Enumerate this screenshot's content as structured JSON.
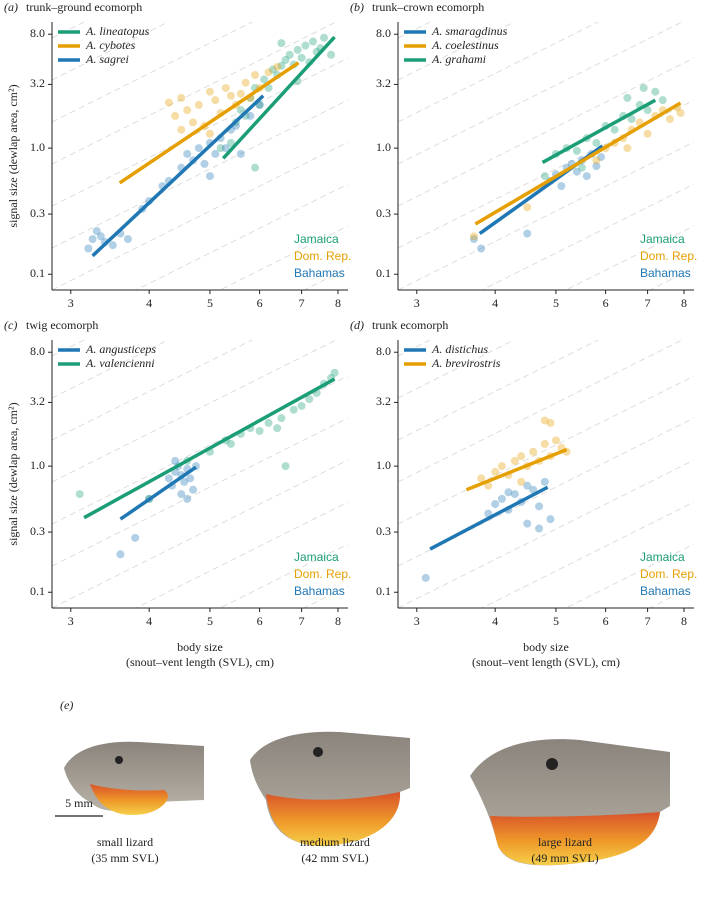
{
  "chart_data": [
    {
      "type": "scatter",
      "panel_label": "(a)",
      "title": "trunk–ground ecomorph",
      "y_label": "signal size (dewlap area, cm²)",
      "log_x": true,
      "log_y": true,
      "xlim": [
        2.8,
        8.3
      ],
      "ylim": [
        0.075,
        10
      ],
      "xticks": [
        3,
        4,
        5,
        6,
        7,
        8
      ],
      "yticks": [
        0.1,
        0.3,
        {
          "value": 1,
          "label": "1.0"
        },
        3.2,
        {
          "value": 8,
          "label": "8.0"
        }
      ],
      "regions": [
        {
          "name": "Jamaica",
          "color": "#1b9e77"
        },
        {
          "name": "Dom. Rep.",
          "color": "#e69f00"
        },
        {
          "name": "Bahamas",
          "color": "#1f77b4"
        }
      ],
      "series": [
        {
          "name": "A. lineatopus",
          "color": "#1b9e77",
          "x": [
            5.2,
            5.4,
            5.5,
            5.6,
            5.7,
            5.8,
            5.9,
            6.0,
            6.1,
            6.2,
            6.3,
            6.4,
            6.5,
            6.6,
            6.7,
            6.8,
            6.9,
            7.0,
            7.1,
            7.2,
            7.3,
            7.4,
            7.5,
            7.6,
            7.8,
            5.9,
            6.5,
            6.9
          ],
          "values": [
            1.0,
            1.1,
            1.6,
            2.0,
            1.8,
            2.5,
            3.0,
            2.2,
            3.5,
            3.0,
            4.2,
            3.8,
            4.5,
            5.0,
            5.5,
            4.6,
            6.0,
            5.2,
            6.5,
            4.8,
            7.0,
            5.8,
            6.2,
            7.5,
            5.5,
            0.7,
            6.8,
            3.4
          ],
          "fit_x": [
            5.25,
            7.9
          ],
          "fit_y": [
            0.83,
            7.6
          ]
        },
        {
          "name": "A. cybotes",
          "color": "#e69f00",
          "x": [
            4.3,
            4.4,
            4.5,
            4.6,
            4.7,
            4.8,
            4.9,
            5.0,
            5.1,
            5.2,
            5.3,
            5.4,
            5.5,
            5.6,
            5.7,
            5.8,
            5.9,
            6.0,
            6.2,
            6.4,
            4.5,
            5.0
          ],
          "values": [
            2.3,
            1.8,
            2.5,
            2.0,
            1.6,
            2.2,
            1.5,
            2.8,
            2.4,
            1.9,
            3.0,
            2.6,
            2.2,
            2.7,
            3.3,
            2.5,
            3.8,
            3.0,
            4.0,
            4.4,
            1.4,
            1.3
          ],
          "fit_x": [
            3.59,
            6.92
          ],
          "fit_y": [
            0.53,
            4.75
          ]
        },
        {
          "name": "A. sagrei",
          "color": "#1f77b4",
          "x": [
            3.2,
            3.25,
            3.3,
            3.35,
            3.4,
            3.5,
            3.6,
            3.7,
            3.9,
            4.0,
            4.2,
            4.3,
            4.5,
            4.6,
            4.7,
            4.8,
            4.9,
            5.0,
            5.0,
            5.1,
            5.2,
            5.3,
            5.4,
            5.5,
            5.6,
            5.8,
            6.0
          ],
          "values": [
            0.16,
            0.19,
            0.22,
            0.2,
            0.18,
            0.17,
            0.21,
            0.19,
            0.33,
            0.38,
            0.5,
            0.55,
            0.7,
            0.9,
            0.8,
            1.0,
            0.75,
            1.1,
            0.6,
            0.9,
            1.2,
            1.0,
            1.4,
            1.5,
            0.9,
            1.8,
            2.2
          ],
          "fit_x": [
            3.25,
            6.08
          ],
          "fit_y": [
            0.14,
            2.6
          ]
        }
      ]
    },
    {
      "type": "scatter",
      "panel_label": "(b)",
      "title": "trunk–crown ecomorph",
      "log_x": true,
      "log_y": true,
      "xlim": [
        2.8,
        8.3
      ],
      "ylim": [
        0.075,
        10
      ],
      "xticks": [
        3,
        4,
        5,
        6,
        7,
        8
      ],
      "yticks": [
        0.1,
        0.3,
        {
          "value": 1,
          "label": "1.0"
        },
        3.2,
        {
          "value": 8,
          "label": "8.0"
        }
      ],
      "regions": [
        {
          "name": "Jamaica",
          "color": "#1b9e77"
        },
        {
          "name": "Dom. Rep.",
          "color": "#e69f00"
        },
        {
          "name": "Bahamas",
          "color": "#1f77b4"
        }
      ],
      "series": [
        {
          "name": "A. smaragdinus",
          "color": "#1f77b4",
          "x": [
            3.7,
            3.8,
            4.5,
            4.9,
            5.0,
            5.1,
            5.2,
            5.3,
            5.4,
            5.5,
            5.6,
            5.7,
            5.8,
            5.9
          ],
          "values": [
            0.19,
            0.16,
            0.21,
            0.55,
            0.62,
            0.5,
            0.7,
            0.75,
            0.65,
            0.8,
            0.6,
            0.9,
            0.72,
            0.85
          ],
          "fit_x": [
            3.78,
            5.93
          ],
          "fit_y": [
            0.21,
            1.04
          ]
        },
        {
          "name": "A. coelestinus",
          "color": "#e69f00",
          "x": [
            3.7,
            4.5,
            5.8,
            6.0,
            6.2,
            6.4,
            6.5,
            6.6,
            6.8,
            7.0,
            7.2,
            7.4,
            7.6,
            7.8,
            7.9
          ],
          "values": [
            0.2,
            0.34,
            0.8,
            1.0,
            1.1,
            1.2,
            1.0,
            1.4,
            1.6,
            1.3,
            1.8,
            2.0,
            1.7,
            2.1,
            1.9
          ],
          "fit_x": [
            3.72,
            7.9
          ],
          "fit_y": [
            0.25,
            2.28
          ]
        },
        {
          "name": "A. grahami",
          "color": "#1b9e77",
          "x": [
            4.8,
            5.0,
            5.2,
            5.4,
            5.6,
            5.8,
            6.0,
            6.2,
            6.4,
            6.6,
            6.8,
            7.0,
            7.2,
            7.4,
            6.5,
            5.5,
            6.9
          ],
          "values": [
            0.6,
            0.9,
            1.0,
            0.95,
            1.2,
            1.1,
            1.5,
            1.4,
            1.8,
            1.7,
            2.2,
            2.0,
            2.8,
            2.4,
            2.5,
            0.7,
            3.0
          ],
          "fit_x": [
            4.76,
            7.2
          ],
          "fit_y": [
            0.77,
            2.4
          ]
        }
      ]
    },
    {
      "type": "scatter",
      "panel_label": "(c)",
      "title": "twig ecomorph",
      "y_label": "signal size (dewlap area, cm²)",
      "x_label": [
        "body size",
        "(snout–vent length (SVL), cm)"
      ],
      "log_x": true,
      "log_y": true,
      "xlim": [
        2.8,
        8.3
      ],
      "ylim": [
        0.075,
        10
      ],
      "xticks": [
        3,
        4,
        5,
        6,
        7,
        8
      ],
      "yticks": [
        0.1,
        0.3,
        {
          "value": 1,
          "label": "1.0"
        },
        3.2,
        {
          "value": 8,
          "label": "8.0"
        }
      ],
      "regions": [
        {
          "name": "Jamaica",
          "color": "#1b9e77"
        },
        {
          "name": "Dom. Rep.",
          "color": "#e69f00"
        },
        {
          "name": "Bahamas",
          "color": "#1f77b4"
        }
      ],
      "series": [
        {
          "name": "A. angusticeps",
          "color": "#1f77b4",
          "x": [
            3.6,
            3.8,
            4.0,
            4.3,
            4.35,
            4.4,
            4.45,
            4.5,
            4.5,
            4.55,
            4.6,
            4.65,
            4.7,
            4.75,
            4.4,
            4.6
          ],
          "values": [
            0.2,
            0.27,
            0.55,
            0.8,
            0.7,
            0.9,
            1.0,
            0.85,
            0.6,
            0.75,
            0.95,
            0.8,
            0.65,
            1.0,
            1.1,
            0.55
          ],
          "fit_x": [
            3.6,
            4.75
          ],
          "fit_y": [
            0.38,
            0.98
          ]
        },
        {
          "name": "A. valencienni",
          "color": "#1b9e77",
          "x": [
            3.1,
            4.0,
            4.6,
            5.0,
            5.3,
            5.6,
            5.8,
            6.0,
            6.2,
            6.5,
            6.6,
            6.8,
            7.0,
            7.2,
            7.4,
            7.6,
            7.8,
            7.9,
            6.4,
            5.4
          ],
          "values": [
            0.6,
            0.55,
            1.1,
            1.3,
            1.6,
            1.8,
            2.0,
            1.9,
            2.2,
            2.4,
            1.0,
            2.8,
            3.0,
            3.4,
            3.8,
            4.5,
            5.0,
            5.5,
            2.0,
            1.5
          ],
          "fit_x": [
            3.15,
            7.9
          ],
          "fit_y": [
            0.39,
            4.9
          ]
        }
      ]
    },
    {
      "type": "scatter",
      "panel_label": "(d)",
      "title": "trunk ecomorph",
      "x_label": [
        "body size",
        "(snout–vent length (SVL), cm)"
      ],
      "log_x": true,
      "log_y": true,
      "xlim": [
        2.8,
        8.3
      ],
      "ylim": [
        0.075,
        10
      ],
      "xticks": [
        3,
        4,
        5,
        6,
        7,
        8
      ],
      "yticks": [
        0.1,
        0.3,
        {
          "value": 1,
          "label": "1.0"
        },
        3.2,
        {
          "value": 8,
          "label": "8.0"
        }
      ],
      "regions": [
        {
          "name": "Jamaica",
          "color": "#1b9e77"
        },
        {
          "name": "Dom. Rep.",
          "color": "#e69f00"
        },
        {
          "name": "Bahamas",
          "color": "#1f77b4"
        }
      ],
      "series": [
        {
          "name": "A. distichus",
          "color": "#1f77b4",
          "x": [
            3.1,
            3.9,
            4.0,
            4.1,
            4.2,
            4.3,
            4.4,
            4.5,
            4.6,
            4.7,
            4.8,
            4.9,
            4.5,
            4.7,
            4.2
          ],
          "values": [
            0.13,
            0.42,
            0.5,
            0.55,
            0.45,
            0.6,
            0.52,
            0.7,
            0.65,
            0.48,
            0.75,
            0.38,
            0.35,
            0.32,
            0.62
          ],
          "fit_x": [
            3.15,
            4.85
          ],
          "fit_y": [
            0.22,
            0.68
          ]
        },
        {
          "name": "A. brevirostris",
          "color": "#e69f00",
          "x": [
            3.8,
            3.9,
            4.0,
            4.1,
            4.2,
            4.3,
            4.4,
            4.5,
            4.6,
            4.7,
            4.8,
            4.9,
            5.0,
            5.1,
            5.2,
            4.8,
            4.9,
            4.4
          ],
          "values": [
            0.8,
            0.7,
            0.9,
            1.0,
            0.85,
            1.1,
            1.2,
            1.0,
            1.3,
            1.1,
            1.5,
            1.2,
            1.6,
            1.4,
            1.3,
            2.3,
            2.2,
            0.75
          ],
          "fit_x": [
            3.6,
            5.2
          ],
          "fit_y": [
            0.65,
            1.35
          ]
        }
      ]
    }
  ],
  "photo_panel": {
    "label": "(e)",
    "scale_bar": "5 mm",
    "captions": [
      [
        "small lizard",
        "(35 mm SVL)"
      ],
      [
        "medium lizard",
        "(42 mm SVL)"
      ],
      [
        "large lizard",
        "(49 mm SVL)"
      ]
    ]
  }
}
